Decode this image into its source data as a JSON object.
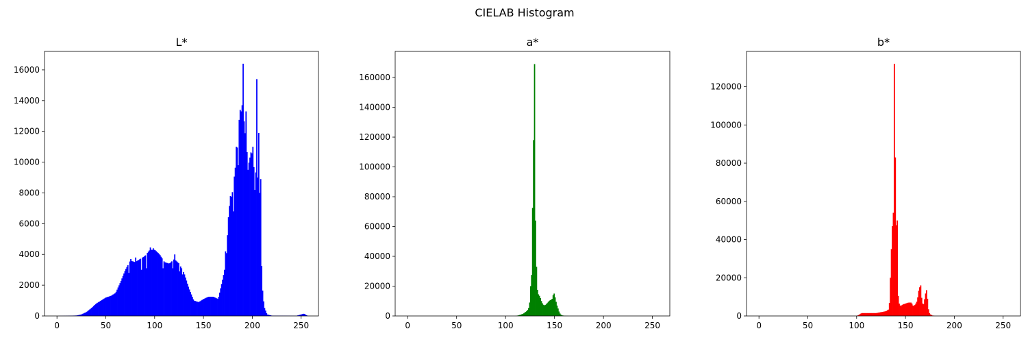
{
  "figure": {
    "suptitle": "CIELAB Histogram"
  },
  "chart_data": [
    {
      "type": "bar",
      "title": "L*",
      "color": "#0000ff",
      "xlim": [
        -12.75,
        267.75
      ],
      "xticks": [
        0,
        50,
        100,
        150,
        200,
        250
      ],
      "ylim": [
        0,
        17200
      ],
      "yticks": [
        0,
        2000,
        4000,
        6000,
        8000,
        10000,
        12000,
        14000,
        16000
      ],
      "profile": [
        [
          0,
          0
        ],
        [
          10,
          10
        ],
        [
          20,
          30
        ],
        [
          25,
          100
        ],
        [
          30,
          250
        ],
        [
          35,
          500
        ],
        [
          40,
          800
        ],
        [
          45,
          1000
        ],
        [
          50,
          1200
        ],
        [
          55,
          1300
        ],
        [
          60,
          1500
        ],
        [
          65,
          2200
        ],
        [
          70,
          3000
        ],
        [
          75,
          3600
        ],
        [
          80,
          3500
        ],
        [
          85,
          3700
        ],
        [
          90,
          3900
        ],
        [
          95,
          4300
        ],
        [
          100,
          4300
        ],
        [
          105,
          4000
        ],
        [
          110,
          3500
        ],
        [
          115,
          3400
        ],
        [
          120,
          3700
        ],
        [
          125,
          3400
        ],
        [
          130,
          2800
        ],
        [
          135,
          1800
        ],
        [
          140,
          1000
        ],
        [
          145,
          900
        ],
        [
          150,
          1100
        ],
        [
          155,
          1250
        ],
        [
          160,
          1250
        ],
        [
          165,
          1100
        ],
        [
          170,
          2500
        ],
        [
          173,
          3500
        ],
        [
          176,
          7000
        ],
        [
          180,
          8200
        ],
        [
          184,
          10500
        ],
        [
          187,
          13200
        ],
        [
          190,
          13800
        ],
        [
          193,
          11500
        ],
        [
          196,
          9800
        ],
        [
          199,
          10800
        ],
        [
          203,
          9000
        ],
        [
          206,
          11000
        ],
        [
          208,
          7000
        ],
        [
          210,
          2000
        ],
        [
          212,
          600
        ],
        [
          215,
          100
        ],
        [
          220,
          20
        ],
        [
          245,
          10
        ],
        [
          250,
          100
        ],
        [
          253,
          150
        ],
        [
          255,
          50
        ]
      ],
      "peaks": [
        [
          75,
          3700
        ],
        [
          80,
          3800
        ],
        [
          95,
          4450
        ],
        [
          98,
          4400
        ],
        [
          120,
          4000
        ],
        [
          172,
          4200
        ],
        [
          177,
          7800
        ],
        [
          183,
          11000
        ],
        [
          187,
          13400
        ],
        [
          188,
          13300
        ],
        [
          190,
          16400
        ],
        [
          193,
          13300
        ],
        [
          200,
          11000
        ],
        [
          204,
          15400
        ],
        [
          206,
          11900
        ],
        [
          208,
          8900
        ]
      ],
      "valleys": [
        [
          73,
          2800
        ],
        [
          86,
          3000
        ],
        [
          91,
          3100
        ],
        [
          108,
          3100
        ],
        [
          118,
          3100
        ],
        [
          125,
          2900
        ],
        [
          128,
          2700
        ],
        [
          180,
          6800
        ],
        [
          185,
          9800
        ],
        [
          195,
          9500
        ],
        [
          202,
          8200
        ],
        [
          205,
          9000
        ]
      ]
    },
    {
      "type": "bar",
      "title": "a*",
      "color": "#008000",
      "xlim": [
        -12.75,
        267.75
      ],
      "xticks": [
        0,
        50,
        100,
        150,
        200,
        250
      ],
      "ylim": [
        0,
        177500
      ],
      "yticks": [
        0,
        20000,
        40000,
        60000,
        80000,
        100000,
        120000,
        140000,
        160000
      ],
      "profile": [
        [
          0,
          0
        ],
        [
          110,
          0
        ],
        [
          112,
          200
        ],
        [
          115,
          800
        ],
        [
          118,
          1500
        ],
        [
          120,
          2500
        ],
        [
          122,
          3500
        ],
        [
          124,
          6000
        ],
        [
          125,
          12000
        ],
        [
          126,
          28000
        ],
        [
          127,
          27000
        ],
        [
          128,
          118000
        ],
        [
          129,
          169000
        ],
        [
          130,
          95000
        ],
        [
          131,
          33000
        ],
        [
          132,
          20000
        ],
        [
          133,
          15000
        ],
        [
          135,
          13000
        ],
        [
          137,
          9000
        ],
        [
          139,
          7000
        ],
        [
          141,
          7500
        ],
        [
          143,
          9000
        ],
        [
          145,
          10500
        ],
        [
          147,
          11000
        ],
        [
          148,
          12000
        ],
        [
          149,
          16000
        ],
        [
          150,
          14000
        ],
        [
          151,
          11000
        ],
        [
          152,
          8000
        ],
        [
          153,
          6000
        ],
        [
          155,
          2000
        ],
        [
          157,
          500
        ],
        [
          160,
          100
        ],
        [
          165,
          0
        ],
        [
          255,
          0
        ]
      ],
      "peaks": [
        [
          128,
          118000
        ],
        [
          129,
          169000
        ],
        [
          131,
          33000
        ]
      ],
      "valleys": []
    },
    {
      "type": "bar",
      "title": "b*",
      "color": "#ff0000",
      "xlim": [
        -12.75,
        267.75
      ],
      "xticks": [
        0,
        50,
        100,
        150,
        200,
        250
      ],
      "ylim": [
        0,
        138500
      ],
      "yticks": [
        0,
        20000,
        40000,
        60000,
        80000,
        100000,
        120000
      ],
      "profile": [
        [
          0,
          0
        ],
        [
          100,
          0
        ],
        [
          102,
          500
        ],
        [
          105,
          1500
        ],
        [
          110,
          1500
        ],
        [
          115,
          1500
        ],
        [
          120,
          1500
        ],
        [
          125,
          2000
        ],
        [
          130,
          2500
        ],
        [
          133,
          3500
        ],
        [
          134,
          10000
        ],
        [
          135,
          30000
        ],
        [
          136,
          40000
        ],
        [
          137,
          54000
        ],
        [
          138,
          132000
        ],
        [
          139,
          83000
        ],
        [
          140,
          45000
        ],
        [
          141,
          50000
        ],
        [
          142,
          14000
        ],
        [
          143,
          7000
        ],
        [
          145,
          5000
        ],
        [
          147,
          6000
        ],
        [
          150,
          6500
        ],
        [
          153,
          7000
        ],
        [
          156,
          7000
        ],
        [
          158,
          5000
        ],
        [
          160,
          6000
        ],
        [
          162,
          8000
        ],
        [
          164,
          15000
        ],
        [
          165,
          16000
        ],
        [
          166,
          11000
        ],
        [
          168,
          5000
        ],
        [
          170,
          10000
        ],
        [
          171,
          13500
        ],
        [
          172,
          13000
        ],
        [
          173,
          5000
        ],
        [
          174,
          2000
        ],
        [
          175,
          1000
        ],
        [
          177,
          300
        ],
        [
          180,
          0
        ],
        [
          255,
          0
        ]
      ],
      "peaks": [
        [
          137,
          54000
        ],
        [
          138,
          132000
        ],
        [
          139,
          83000
        ],
        [
          141,
          50000
        ],
        [
          164,
          15000
        ],
        [
          165,
          16000
        ],
        [
          171,
          13500
        ]
      ],
      "valleys": []
    }
  ]
}
